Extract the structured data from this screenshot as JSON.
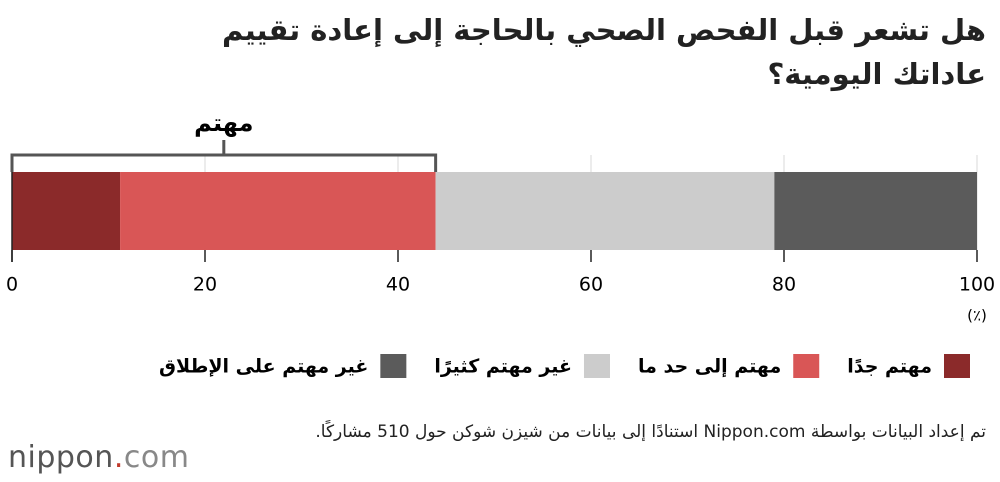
{
  "chart_data": {
    "type": "bar",
    "orientation": "horizontal",
    "stacked": true,
    "title": "هل تشعر قبل الفحص الصحي بالحاجة إلى إعادة تقييم عاداتك اليومية؟",
    "categories": [
      null
    ],
    "series": [
      {
        "name": "مهتم جدًا",
        "color": "#8b2a2a",
        "values": [
          11.2
        ]
      },
      {
        "name": "مهتم إلى حد ما",
        "color": "#d95656",
        "values": [
          32.7
        ]
      },
      {
        "name": "غير مهتم كثيرًا",
        "color": "#cccccc",
        "values": [
          35.1
        ]
      },
      {
        "name": "غير مهتم على الإطلاق",
        "color": "#5b5b5b",
        "values": [
          21.0
        ]
      }
    ],
    "xlim": [
      0,
      100
    ],
    "xticks": [
      0,
      20,
      40,
      60,
      80,
      100
    ],
    "xlabel": "(٪)",
    "grid": true,
    "bracket": {
      "label": "مهتم",
      "series": [
        0,
        1
      ]
    },
    "source": "تم إعداد البيانات بواسطة Nippon.com استنادًا إلى بيانات من شيزن شوكن حول 510 مشاركًا.",
    "logo": [
      "nippon",
      ".",
      "com"
    ]
  }
}
